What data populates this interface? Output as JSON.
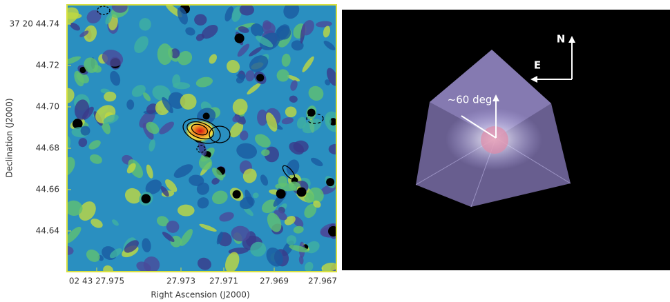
{
  "left_panel": {
    "x_label": "Right Ascension (J2000)",
    "y_label": "Declination (J2000)",
    "xticks": [
      "02 43 27.975",
      "27.973",
      "27.971",
      "27.969",
      "27.967"
    ],
    "yticks": [
      "37 20 44.74",
      "44.72",
      "44.70",
      "44.68",
      "44.66",
      "44.64"
    ]
  },
  "right_panel": {
    "north": "N",
    "east": "E",
    "angle": "~60 deg"
  }
}
